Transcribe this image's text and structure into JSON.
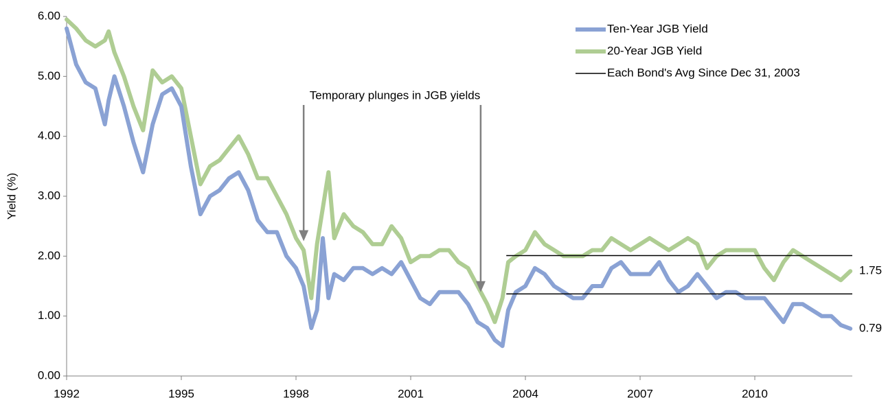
{
  "chart_data": {
    "type": "line",
    "y_label": "Yield (%)",
    "xlim": [
      1992,
      2012.55
    ],
    "xticks": [
      1992,
      1995,
      1998,
      2001,
      2004,
      2007,
      2010
    ],
    "ylim": [
      0,
      6
    ],
    "yticks": [
      {
        "value": 0,
        "label": "0.00"
      },
      {
        "value": 1,
        "label": "1.00"
      },
      {
        "value": 2,
        "label": "2.00"
      },
      {
        "value": 3,
        "label": "3.00"
      },
      {
        "value": 4,
        "label": "4.00"
      },
      {
        "value": 5,
        "label": "5.00"
      },
      {
        "value": 6,
        "label": "6.00"
      }
    ],
    "grid": false,
    "legend": "upper right",
    "x": [
      1992,
      1992.25,
      1992.5,
      1992.75,
      1993,
      1993.1,
      1993.25,
      1993.5,
      1993.75,
      1994,
      1994.25,
      1994.5,
      1994.75,
      1995,
      1995.25,
      1995.5,
      1995.75,
      1996,
      1996.25,
      1996.5,
      1996.75,
      1997,
      1997.25,
      1997.5,
      1997.75,
      1998,
      1998.2,
      1998.4,
      1998.55,
      1998.7,
      1998.85,
      1999,
      1999.25,
      1999.5,
      1999.75,
      2000,
      2000.25,
      2000.5,
      2000.75,
      2001,
      2001.25,
      2001.5,
      2001.75,
      2002,
      2002.25,
      2002.5,
      2002.75,
      2003,
      2003.2,
      2003.4,
      2003.55,
      2003.75,
      2004,
      2004.25,
      2004.5,
      2004.75,
      2005,
      2005.25,
      2005.5,
      2005.75,
      2006,
      2006.25,
      2006.5,
      2006.75,
      2007,
      2007.25,
      2007.5,
      2007.75,
      2008,
      2008.25,
      2008.5,
      2008.75,
      2009,
      2009.25,
      2009.5,
      2009.75,
      2010,
      2010.25,
      2010.5,
      2010.75,
      2011,
      2011.25,
      2011.5,
      2011.75,
      2012,
      2012.25,
      2012.5
    ],
    "series": [
      {
        "name": "Ten-Year JGB Yield",
        "color": "#8aa2d4",
        "end_label": "0.79",
        "values": [
          5.8,
          5.2,
          4.9,
          4.8,
          4.2,
          4.6,
          5.0,
          4.5,
          3.9,
          3.4,
          4.2,
          4.7,
          4.8,
          4.5,
          3.5,
          2.7,
          3.0,
          3.1,
          3.3,
          3.4,
          3.1,
          2.6,
          2.4,
          2.4,
          2.0,
          1.8,
          1.5,
          0.8,
          1.1,
          2.3,
          1.3,
          1.7,
          1.6,
          1.8,
          1.8,
          1.7,
          1.8,
          1.7,
          1.9,
          1.6,
          1.3,
          1.2,
          1.4,
          1.4,
          1.4,
          1.2,
          0.9,
          0.8,
          0.6,
          0.5,
          1.1,
          1.4,
          1.5,
          1.8,
          1.7,
          1.5,
          1.4,
          1.3,
          1.3,
          1.5,
          1.5,
          1.8,
          1.9,
          1.7,
          1.7,
          1.7,
          1.9,
          1.6,
          1.4,
          1.5,
          1.7,
          1.5,
          1.3,
          1.4,
          1.4,
          1.3,
          1.3,
          1.3,
          1.1,
          0.9,
          1.2,
          1.2,
          1.1,
          1.0,
          1.0,
          0.85,
          0.79
        ]
      },
      {
        "name": "20-Year JGB Yield",
        "color": "#afcd93",
        "end_label": "1.75",
        "values": [
          5.95,
          5.8,
          5.6,
          5.5,
          5.6,
          5.75,
          5.4,
          5.0,
          4.5,
          4.1,
          5.1,
          4.9,
          5.0,
          4.8,
          4.0,
          3.2,
          3.5,
          3.6,
          3.8,
          4.0,
          3.7,
          3.3,
          3.3,
          3.0,
          2.7,
          2.3,
          2.1,
          1.3,
          2.2,
          2.8,
          3.4,
          2.3,
          2.7,
          2.5,
          2.4,
          2.2,
          2.2,
          2.5,
          2.3,
          1.9,
          2.0,
          2.0,
          2.1,
          2.1,
          1.9,
          1.8,
          1.5,
          1.2,
          0.9,
          1.3,
          1.9,
          2.0,
          2.1,
          2.4,
          2.2,
          2.1,
          2.0,
          2.0,
          2.0,
          2.1,
          2.1,
          2.3,
          2.2,
          2.1,
          2.2,
          2.3,
          2.2,
          2.1,
          2.2,
          2.3,
          2.2,
          1.8,
          2.0,
          2.1,
          2.1,
          2.1,
          2.1,
          1.8,
          1.6,
          1.9,
          2.1,
          2.0,
          1.9,
          1.8,
          1.7,
          1.6,
          1.75
        ]
      }
    ],
    "reference_name": "Each Bond's Avg Since Dec 31, 2003",
    "reference_color": "#000000",
    "reference_lines": [
      {
        "value": 2.01,
        "from": 2003.5,
        "to": 2012.55
      },
      {
        "value": 1.37,
        "from": 2003.5,
        "to": 2012.55
      }
    ],
    "annotation": {
      "text": "Temporary plunges in JGB yields",
      "color": "#808080",
      "arrows": [
        {
          "x": 1998.2,
          "y": 2.25
        },
        {
          "x": 2002.83,
          "y": 1.4
        }
      ]
    }
  }
}
